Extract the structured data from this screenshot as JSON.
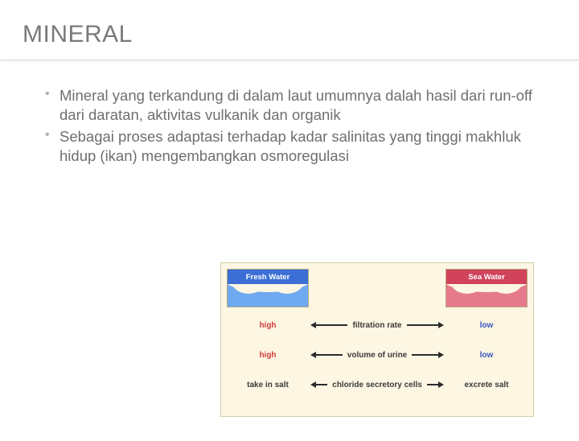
{
  "title": "MINERAL",
  "bullets": [
    "Mineral yang terkandung di dalam laut umumnya dalah hasil dari run-off dari daratan, aktivitas vulkanik dan organik",
    "Sebagai proses adaptasi terhadap kadar salinitas yang tinggi makhluk hidup (ikan) mengembangkan osmoregulasi"
  ],
  "diagram": {
    "type": "infographic",
    "background_color": "#fdf6e3",
    "border_color": "#cfcfa8",
    "columns": {
      "left": {
        "label": "Fresh Water",
        "header_bg": "#3b6fd6",
        "water_bg": "#6fa9f0"
      },
      "right": {
        "label": "Sea Water",
        "header_bg": "#d0435b",
        "water_bg": "#e57a8c"
      }
    },
    "rows": [
      {
        "left": "high",
        "left_color": "#d03a3a",
        "mid": "filtration rate",
        "right": "low",
        "right_color": "#3656c0"
      },
      {
        "left": "high",
        "left_color": "#d03a3a",
        "mid": "volume of urine",
        "right": "low",
        "right_color": "#3656c0"
      },
      {
        "left": "take in salt",
        "left_color": "#3b3b3b",
        "mid": "chloride secretory cells",
        "right": "excrete salt",
        "right_color": "#3b3b3b"
      }
    ],
    "arrow_color": "#2b2b2b",
    "label_fontsize": 10,
    "header_fontsize": 9.5
  }
}
